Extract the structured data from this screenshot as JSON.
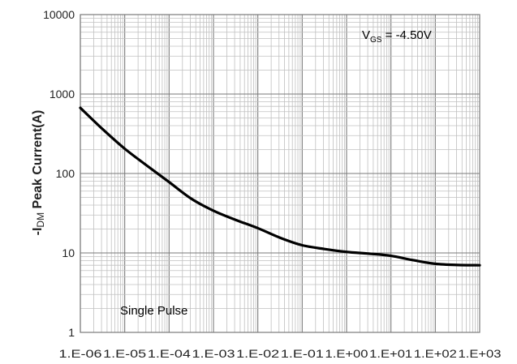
{
  "chart_data": {
    "type": "line",
    "title": "",
    "xlabel": "",
    "ylabel": "-IDM Peak Current(A)",
    "ylabel_parts": {
      "prefix": "-I",
      "sub": "DM",
      "rest": " Peak Current(A)"
    },
    "x_scale": "log",
    "y_scale": "log",
    "xlim": [
      1e-06,
      1000
    ],
    "ylim": [
      1,
      10000
    ],
    "x_tick_values": [
      1e-06,
      1e-05,
      0.0001,
      0.001,
      0.01,
      0.1,
      1,
      10,
      100,
      1000
    ],
    "x_tick_labels": [
      "1.E-06",
      "1.E-05",
      "1.E-04",
      "1.E-03",
      "1.E-02",
      "1.E-01",
      "1.E+00",
      "1.E+01",
      "1.E+02",
      "1.E+03"
    ],
    "y_tick_values": [
      1,
      10,
      100,
      1000,
      10000
    ],
    "y_tick_labels": [
      "1",
      "10",
      "100",
      "1000",
      "10000"
    ],
    "grid": true,
    "legend": "none",
    "annotations": {
      "vgs": {
        "prefix": "V",
        "sub": "GS",
        "rest": " = -4.50V"
      },
      "pulse": "Single Pulse"
    },
    "series": [
      {
        "x": [
          1e-06,
          3.2e-06,
          1e-05,
          3.2e-05,
          0.0001,
          0.00032,
          0.001,
          0.0032,
          0.01,
          0.032,
          0.1,
          0.32,
          1,
          3.2,
          10,
          32,
          100,
          320,
          1000
        ],
        "values": [
          670,
          360,
          205,
          125,
          78,
          48,
          34,
          26,
          20.5,
          15.5,
          12.5,
          11.2,
          10.3,
          9.8,
          9.2,
          8.1,
          7.3,
          7.05,
          7.0
        ]
      }
    ],
    "colors": {
      "line": "#000000",
      "grid": "#c0c0c0",
      "axis": "#7a7a7a"
    }
  }
}
